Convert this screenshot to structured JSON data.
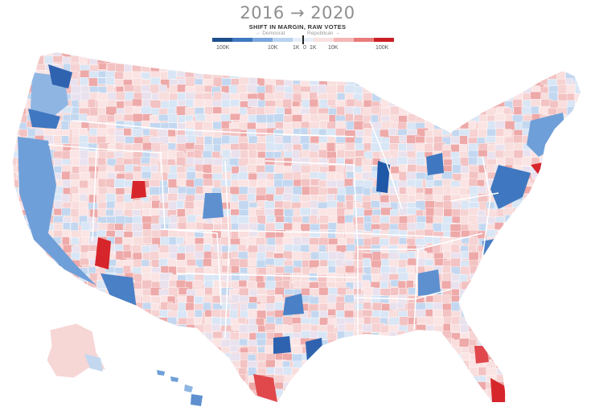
{
  "header": {
    "title": "2016 → 2020",
    "subtitle": "SHIFT IN MARGIN, RAW VOTES",
    "dem_label": "← Democrat",
    "rep_label": "Republican →"
  },
  "legend": {
    "ticks": [
      "100K",
      "10K",
      "1K",
      "0",
      "1K",
      "10K",
      "100K"
    ],
    "colors": [
      "#1f4e8c",
      "#3f78c0",
      "#7aa6dc",
      "#b9d2ef",
      "#e6eef8",
      "#f9e0e0",
      "#f4b6b6",
      "#e87c7c",
      "#c91f25"
    ]
  },
  "colors": {
    "dem_dark": "#2058a8",
    "dem_mid": "#5e90d0",
    "dem_light": "#c3d8f0",
    "rep_light": "#f6d2d2",
    "rep_mid": "#ec9696",
    "rep_dark": "#d6262b",
    "border": "#ffffff"
  }
}
